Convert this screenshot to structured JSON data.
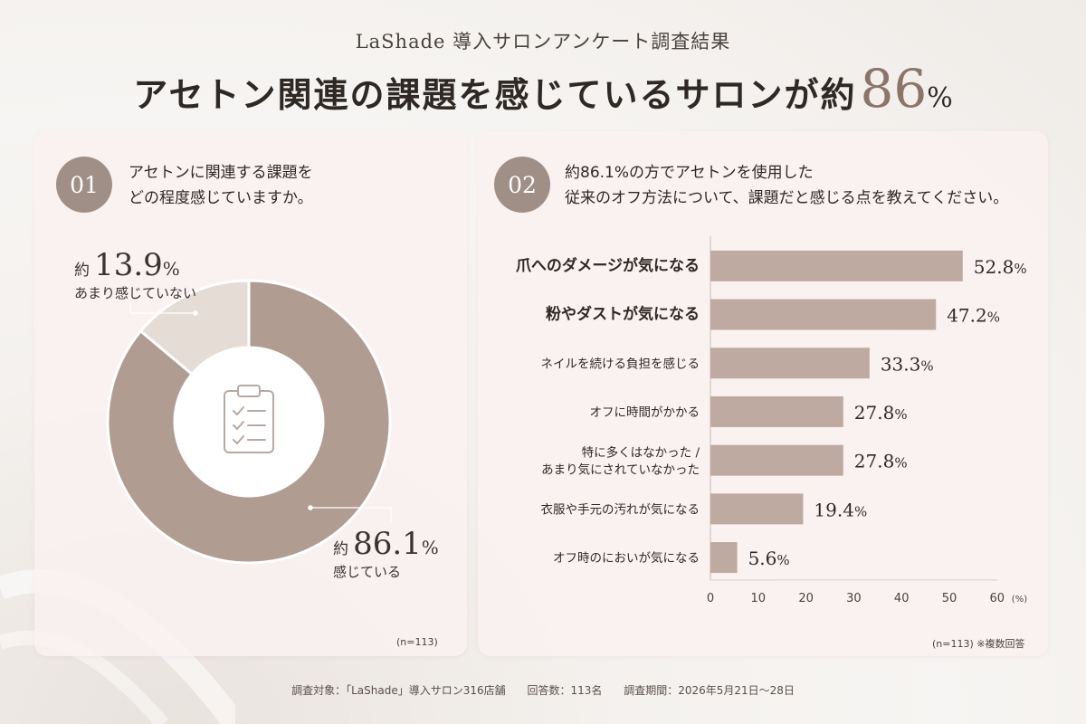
{
  "header": {
    "subtitle": "LaShade 導入サロンアンケート調査結果",
    "headline": "アセトン関連の課題を感じているサロンが約",
    "headline_number": "86",
    "headline_unit": "%"
  },
  "left_panel": {
    "badge": "01",
    "question_lines": [
      "アセトンに関連する課題を",
      "どの程度感じていますか。"
    ],
    "labels": [
      {
        "prefix": "約",
        "value": "13.9",
        "unit": "%",
        "text": "あまり感じていない"
      },
      {
        "prefix": "約",
        "value": "86.1",
        "unit": "%",
        "text": "感じている"
      }
    ],
    "n_note": "(n=113)"
  },
  "right_panel": {
    "badge": "02",
    "question_lines": [
      "約86.1%の方でアセトンを使用した",
      "従来のオフ方法について、課題だと感じる点を教えてください。"
    ],
    "n_note": "(n=113) ※複数回答",
    "axis_unit": "(%)"
  },
  "chart_data": [
    {
      "type": "pie",
      "categories": [
        "感じている",
        "あまり感じていない"
      ],
      "values": [
        86.1,
        13.9
      ],
      "colors": [
        "#b19c92",
        "#e6dcd6"
      ],
      "title": "アセトンに関連する課題をどの程度感じていますか。"
    },
    {
      "type": "bar",
      "orientation": "horizontal",
      "categories": [
        "爪へのダメージが気になる",
        "粉やダストが気になる",
        "ネイルを続ける負担を感じる",
        "オフに時間がかかる",
        "特に多くはなかった / あまり気にされていなかった",
        "衣服や手元の汚れが気になる",
        "オフ時のにおいが気になる"
      ],
      "values": [
        52.8,
        47.2,
        33.3,
        27.8,
        27.8,
        19.4,
        5.6
      ],
      "value_labels": [
        "52.8",
        "47.2",
        "33.3",
        "27.8",
        "27.8",
        "19.4",
        "5.6"
      ],
      "value_unit": "%",
      "emphasized": [
        true,
        true,
        false,
        false,
        false,
        false,
        false
      ],
      "xlim": [
        0,
        60
      ],
      "xticks": [
        0,
        10,
        20,
        30,
        40,
        50,
        60
      ],
      "xlabel": "(%)",
      "bar_color": "#bfaaa1",
      "title": "約86.1%の方でアセトンを使用した従来のオフ方法について、課題だと感じる点を教えてください。"
    }
  ],
  "footer": {
    "target": "調査対象：「LaShade」導入サロン316店舗",
    "responses": "回答数：113名",
    "period": "調査期間：2026年5月21日〜28日"
  }
}
